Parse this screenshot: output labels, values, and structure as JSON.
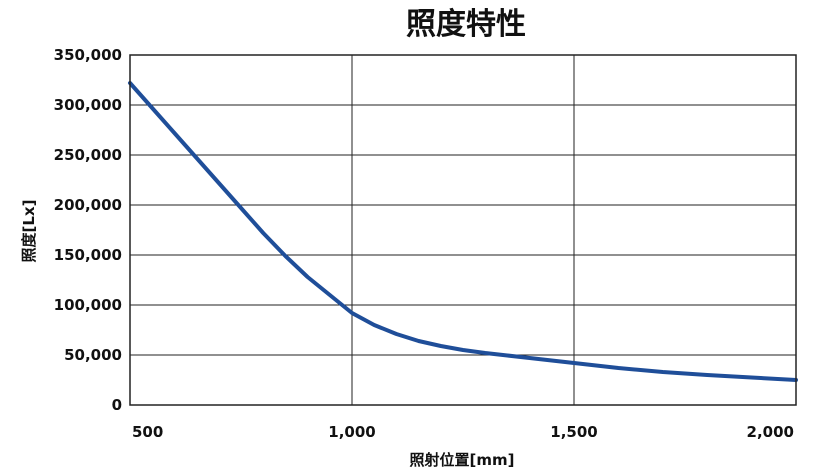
{
  "chart_data": {
    "type": "line",
    "title": "照度特性",
    "xlabel": "照射位置[mm]",
    "ylabel": "照度[Lx]",
    "xlim": [
      500,
      2000
    ],
    "ylim": [
      0,
      350000
    ],
    "grid": true,
    "x_ticks": [
      500,
      1000,
      1500,
      2000
    ],
    "x_tick_labels": [
      "500",
      "1,000",
      "1,500",
      "2,000"
    ],
    "y_ticks": [
      0,
      50000,
      100000,
      150000,
      200000,
      250000,
      300000,
      350000
    ],
    "y_tick_labels": [
      "0",
      "50,000",
      "100,000",
      "150,000",
      "200,000",
      "250,000",
      "300,000",
      "350,000"
    ],
    "series": [
      {
        "color": "#1f4e99",
        "x": [
          500,
          550,
          600,
          650,
          700,
          750,
          800,
          850,
          900,
          950,
          1000,
          1050,
          1100,
          1150,
          1200,
          1250,
          1300,
          1350,
          1400,
          1450,
          1500,
          1600,
          1700,
          1800,
          1900,
          2000
        ],
        "y": [
          322000,
          297000,
          272000,
          247000,
          222000,
          197000,
          172000,
          149000,
          128000,
          110000,
          92000,
          80000,
          71000,
          64000,
          59000,
          55000,
          52000,
          49500,
          47000,
          44500,
          42000,
          37000,
          33000,
          30000,
          27500,
          25000
        ]
      }
    ]
  }
}
